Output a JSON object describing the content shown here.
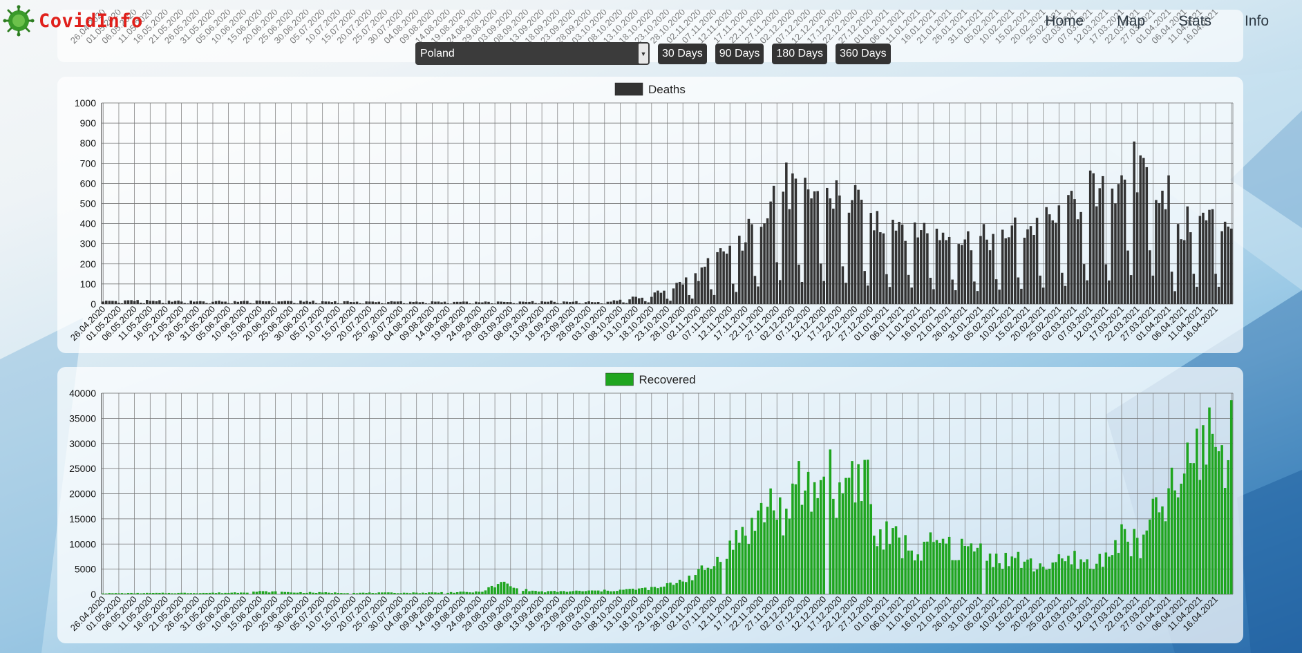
{
  "app": {
    "title": "CovidInfo"
  },
  "nav": {
    "items": [
      "Home",
      "Map",
      "Stats",
      "Info"
    ]
  },
  "controls": {
    "country": "Poland",
    "ranges": [
      "30 Days",
      "90 Days",
      "180 Days",
      "360 Days"
    ]
  },
  "colors": {
    "deaths": "#333333",
    "recovered": "#1fa51f",
    "logo": "#e0201b",
    "logo_icon": "#3a9a2a"
  },
  "chart_data": [
    {
      "type": "bar",
      "title": "",
      "series": [
        {
          "name": "Deaths"
        }
      ],
      "legend": "top-center",
      "ylim": [
        0,
        1000
      ],
      "yticks": [
        0,
        100,
        200,
        300,
        400,
        500,
        600,
        700,
        800,
        900,
        1000
      ],
      "x_start": "26.04.2020",
      "x_end": "21.04.2021",
      "x_tick_labels": [
        "26.04.2020",
        "01.05.2020",
        "06.05.2020",
        "11.05.2020",
        "16.05.2020",
        "21.05.2020",
        "26.05.2020",
        "31.05.2020",
        "05.06.2020",
        "10.06.2020",
        "15.06.2020",
        "20.06.2020",
        "25.06.2020",
        "30.06.2020",
        "05.07.2020",
        "10.07.2020",
        "15.07.2020",
        "20.07.2020",
        "25.07.2020",
        "30.07.2020",
        "04.08.2020",
        "09.08.2020",
        "14.08.2020",
        "19.08.2020",
        "24.08.2020",
        "29.08.2020",
        "03.09.2020",
        "08.09.2020",
        "13.09.2020",
        "18.09.2020",
        "23.09.2020",
        "28.09.2020",
        "03.10.2020",
        "08.10.2020",
        "13.10.2020",
        "18.10.2020",
        "23.10.2020",
        "28.10.2020",
        "02.11.2020",
        "07.11.2020",
        "12.11.2020",
        "17.11.2020",
        "22.11.2020",
        "27.11.2020",
        "02.12.2020",
        "07.12.2020",
        "12.12.2020",
        "17.12.2020",
        "22.12.2020",
        "27.12.2020",
        "01.01.2021",
        "06.01.2021",
        "11.01.2021",
        "16.01.2021",
        "21.01.2021",
        "26.01.2021",
        "31.01.2021",
        "05.02.2021",
        "10.02.2021",
        "15.02.2021",
        "20.02.2021",
        "25.02.2021",
        "02.03.2021",
        "07.03.2021",
        "12.03.2021",
        "17.03.2021",
        "22.03.2021",
        "27.03.2021",
        "01.04.2021",
        "06.04.2021",
        "11.04.2021",
        "16.04.2021"
      ],
      "keypoints": [
        [
          0,
          15
        ],
        [
          10,
          20
        ],
        [
          20,
          15
        ],
        [
          40,
          14
        ],
        [
          60,
          15
        ],
        [
          80,
          12
        ],
        [
          100,
          12
        ],
        [
          120,
          10
        ],
        [
          140,
          15
        ],
        [
          160,
          10
        ],
        [
          175,
          45
        ],
        [
          180,
          75
        ],
        [
          190,
          150
        ],
        [
          196,
          240
        ],
        [
          202,
          300
        ],
        [
          208,
          400
        ],
        [
          213,
          590
        ],
        [
          218,
          600
        ],
        [
          223,
          550
        ],
        [
          228,
          580
        ],
        [
          233,
          560
        ],
        [
          238,
          520
        ],
        [
          243,
          470
        ],
        [
          248,
          420
        ],
        [
          253,
          430
        ],
        [
          258,
          410
        ],
        [
          262,
          380
        ],
        [
          268,
          360
        ],
        [
          273,
          340
        ],
        [
          278,
          320
        ],
        [
          283,
          340
        ],
        [
          288,
          370
        ],
        [
          293,
          380
        ],
        [
          298,
          400
        ],
        [
          303,
          420
        ],
        [
          308,
          460
        ],
        [
          314,
          590
        ],
        [
          318,
          520
        ],
        [
          323,
          630
        ],
        [
          327,
          760
        ],
        [
          330,
          640
        ],
        [
          333,
          820
        ],
        [
          336,
          650
        ],
        [
          338,
          590
        ],
        [
          340,
          600
        ],
        [
          342,
          320
        ],
        [
          347,
          430
        ]
      ]
    },
    {
      "type": "bar",
      "title": "",
      "series": [
        {
          "name": "Recovered"
        }
      ],
      "legend": "top-center",
      "ylim": [
        0,
        40000
      ],
      "yticks": [
        0,
        5000,
        10000,
        15000,
        20000,
        25000,
        30000,
        35000,
        40000
      ],
      "x_start": "26.04.2020",
      "x_end": "21.04.2021",
      "keypoints": [
        [
          0,
          200
        ],
        [
          20,
          250
        ],
        [
          40,
          300
        ],
        [
          50,
          550
        ],
        [
          60,
          380
        ],
        [
          80,
          280
        ],
        [
          100,
          300
        ],
        [
          120,
          450
        ],
        [
          128,
          2300
        ],
        [
          132,
          1000
        ],
        [
          140,
          500
        ],
        [
          160,
          700
        ],
        [
          170,
          1000
        ],
        [
          178,
          1300
        ],
        [
          186,
          3200
        ],
        [
          193,
          5000
        ],
        [
          199,
          8500
        ],
        [
          204,
          12000
        ],
        [
          208,
          14000
        ],
        [
          213,
          18500
        ],
        [
          216,
          16500
        ],
        [
          219,
          15000
        ],
        [
          222,
          21500
        ],
        [
          227,
          20000
        ],
        [
          231,
          24000
        ],
        [
          235,
          19000
        ],
        [
          239,
          26000
        ],
        [
          241,
          22500
        ],
        [
          244,
          24500
        ],
        [
          246,
          11000
        ],
        [
          251,
          11500
        ],
        [
          256,
          9500
        ],
        [
          261,
          8000
        ],
        [
          266,
          10500
        ],
        [
          271,
          8800
        ],
        [
          276,
          9000
        ],
        [
          281,
          8700
        ],
        [
          286,
          6500
        ],
        [
          291,
          7200
        ],
        [
          296,
          5700
        ],
        [
          301,
          5800
        ],
        [
          306,
          6200
        ],
        [
          311,
          7000
        ],
        [
          316,
          5200
        ],
        [
          321,
          9000
        ],
        [
          326,
          11500
        ],
        [
          331,
          9000
        ],
        [
          335,
          15000
        ],
        [
          339,
          18500
        ],
        [
          343,
          21000
        ],
        [
          347,
          25500
        ],
        [
          351,
          30000
        ],
        [
          354,
          33500
        ],
        [
          357,
          27500
        ],
        [
          361,
          30500
        ],
        [
          364,
          35000
        ],
        [
          367,
          16500
        ],
        [
          369,
          24000
        ],
        [
          371,
          27500
        ],
        [
          373,
          21000
        ]
      ]
    }
  ]
}
